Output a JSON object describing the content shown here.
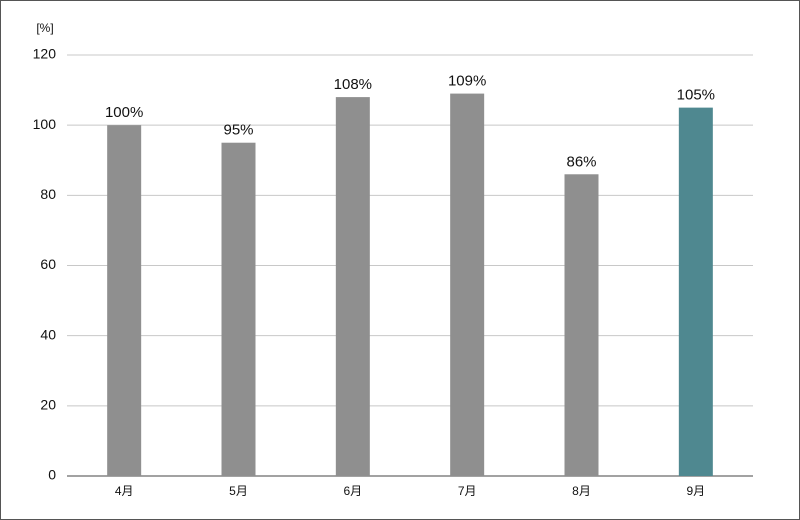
{
  "chart_data": {
    "type": "bar",
    "y_unit_label": "[%]",
    "categories": [
      "4月",
      "5月",
      "6月",
      "7月",
      "8月",
      "9月"
    ],
    "values": [
      100,
      95,
      108,
      109,
      86,
      105
    ],
    "value_labels": [
      "100%",
      "95%",
      "108%",
      "109%",
      "86%",
      "105%"
    ],
    "colors": [
      "#8f8f8f",
      "#8f8f8f",
      "#8f8f8f",
      "#8f8f8f",
      "#8f8f8f",
      "#4f8890"
    ],
    "ylim": [
      0,
      120
    ],
    "yticks": [
      0,
      20,
      40,
      60,
      80,
      100,
      120
    ],
    "grid": true
  }
}
